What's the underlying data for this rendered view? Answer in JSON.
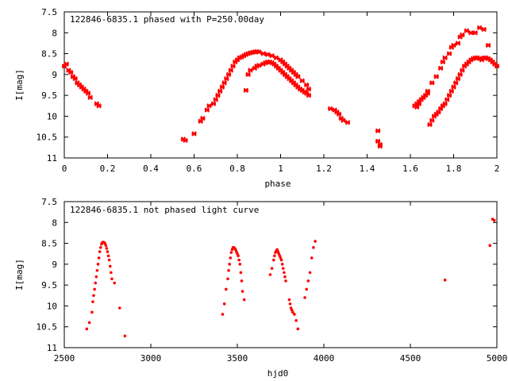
{
  "chart_data": [
    {
      "type": "scatter",
      "title": "122846-6835.1 phased with P=250.00day",
      "xlabel": "phase",
      "ylabel": "I[mag]",
      "xlim": [
        0,
        2
      ],
      "ylim": [
        11,
        7.5
      ],
      "y_inverted": true,
      "grid": false,
      "xticks": [
        0,
        0.2,
        0.4,
        0.6,
        0.8,
        1,
        1.2,
        1.4,
        1.6,
        1.8,
        2
      ],
      "xtick_labels": [
        "0",
        "0.2",
        "0.4",
        "0.6",
        "0.8",
        "1",
        "1.2",
        "1.4",
        "1.6",
        "1.8",
        "2"
      ],
      "yticks": [
        7.5,
        8,
        8.5,
        9,
        9.5,
        10,
        10.5,
        11
      ],
      "ytick_labels": [
        "7.5",
        "8",
        "8.5",
        "9",
        "9.5",
        "10",
        "10.5",
        "11"
      ],
      "marker_color": "#ff0000",
      "marker": "cross",
      "series": [
        {
          "x": [
            0.0,
            0.01,
            0.02,
            0.03,
            0.04,
            0.05,
            0.06,
            0.07,
            0.08,
            0.09,
            0.1,
            0.11,
            0.12,
            0.15,
            0.16,
            0.55,
            0.56,
            0.6,
            0.63,
            0.64,
            0.66,
            0.67,
            0.69,
            0.7,
            0.71,
            0.72,
            0.73,
            0.74,
            0.75,
            0.76,
            0.77,
            0.78,
            0.79,
            0.8,
            0.81,
            0.82,
            0.83,
            0.84,
            0.85,
            0.86,
            0.87,
            0.88,
            0.89,
            0.9,
            0.84,
            0.85,
            0.86,
            0.88,
            0.89,
            0.9,
            0.92,
            0.93,
            0.94,
            0.95,
            0.96,
            0.97,
            0.98,
            0.99,
            1.0,
            1.01,
            1.02,
            1.03,
            1.04,
            1.05,
            1.06,
            1.07,
            1.08,
            1.09,
            1.1,
            1.11,
            1.12,
            1.13,
            0.92,
            0.94,
            0.96,
            0.98,
            1.0,
            1.01,
            1.02,
            1.03,
            1.04,
            1.05,
            1.06,
            1.07,
            1.08,
            1.1,
            1.12,
            1.13,
            1.23,
            1.25,
            1.26,
            1.27,
            1.28,
            1.29,
            1.31,
            1.45,
            1.45,
            1.46,
            1.46,
            1.63,
            1.64,
            1.66,
            1.68,
            1.7,
            1.72,
            1.74,
            1.75,
            1.76,
            1.78,
            1.79,
            1.8,
            1.82,
            1.83,
            1.84,
            1.86,
            1.88,
            1.9,
            1.92,
            1.94,
            1.96,
            1.62,
            1.63,
            1.64,
            1.65,
            1.66,
            1.67,
            1.68,
            1.69,
            1.7,
            1.71,
            1.72,
            1.73,
            1.74,
            1.75,
            1.76,
            1.77,
            1.78,
            1.79,
            1.8,
            1.81,
            1.82,
            1.83,
            1.84,
            1.85,
            1.86,
            1.87,
            1.88,
            1.89,
            1.9,
            1.91,
            1.92,
            1.93,
            1.94,
            1.95,
            1.96,
            1.97,
            1.98,
            1.99,
            2.0
          ],
          "y": [
            8.8,
            8.75,
            8.9,
            8.95,
            9.05,
            9.1,
            9.2,
            9.25,
            9.3,
            9.35,
            9.4,
            9.45,
            9.55,
            9.7,
            9.75,
            10.55,
            10.58,
            10.42,
            10.12,
            10.05,
            9.85,
            9.75,
            9.7,
            9.6,
            9.5,
            9.4,
            9.3,
            9.2,
            9.1,
            9.0,
            8.9,
            8.8,
            8.7,
            8.65,
            8.6,
            8.58,
            8.55,
            8.52,
            8.5,
            8.48,
            8.47,
            8.46,
            8.45,
            8.46,
            9.38,
            9.0,
            8.9,
            8.85,
            8.8,
            8.78,
            8.75,
            8.72,
            8.7,
            8.7,
            8.72,
            8.75,
            8.8,
            8.85,
            8.9,
            8.95,
            9.0,
            9.05,
            9.1,
            9.15,
            9.2,
            9.25,
            9.3,
            9.35,
            9.38,
            9.42,
            9.45,
            9.5,
            8.5,
            8.52,
            8.55,
            8.6,
            8.65,
            8.7,
            8.75,
            8.8,
            8.85,
            8.9,
            8.95,
            9.0,
            9.05,
            9.15,
            9.25,
            9.35,
            9.82,
            9.85,
            9.9,
            9.95,
            10.05,
            10.1,
            10.15,
            10.35,
            10.6,
            10.68,
            10.72,
            9.78,
            9.7,
            9.55,
            9.4,
            9.2,
            9.05,
            8.85,
            8.7,
            8.6,
            8.5,
            8.35,
            8.3,
            8.25,
            8.1,
            8.05,
            7.95,
            8.0,
            8.0,
            7.88,
            7.92,
            8.3,
            9.75,
            9.7,
            9.65,
            9.6,
            9.55,
            9.5,
            9.45,
            10.2,
            10.1,
            10.0,
            9.95,
            9.9,
            9.82,
            9.75,
            9.7,
            9.6,
            9.5,
            9.4,
            9.3,
            9.2,
            9.1,
            9.0,
            8.9,
            8.8,
            8.75,
            8.7,
            8.65,
            8.62,
            8.6,
            8.6,
            8.62,
            8.65,
            8.6,
            8.6,
            8.62,
            8.65,
            8.7,
            8.75,
            8.8
          ]
        }
      ]
    },
    {
      "type": "scatter",
      "title": "122846-6835.1 not phased light curve",
      "xlabel": "hjd0",
      "ylabel": "I[mag]",
      "xlim": [
        2500,
        5000
      ],
      "ylim": [
        11,
        7.5
      ],
      "y_inverted": true,
      "grid": false,
      "xticks": [
        2500,
        3000,
        3500,
        4000,
        4500,
        5000
      ],
      "xtick_labels": [
        "2500",
        "3000",
        "3500",
        "4000",
        "4500",
        "5000"
      ],
      "yticks": [
        7.5,
        8,
        8.5,
        9,
        9.5,
        10,
        10.5,
        11
      ],
      "ytick_labels": [
        "7.5",
        "8",
        "8.5",
        "9",
        "9.5",
        "10",
        "10.5",
        "11"
      ],
      "marker_color": "#ff0000",
      "marker": "dot",
      "series": [
        {
          "x": [
            2630,
            2645,
            2660,
            2665,
            2670,
            2675,
            2680,
            2685,
            2690,
            2695,
            2700,
            2705,
            2710,
            2715,
            2720,
            2725,
            2730,
            2735,
            2740,
            2745,
            2750,
            2755,
            2760,
            2765,
            2770,
            2775,
            2790,
            2820,
            2850,
            3415,
            3425,
            3435,
            3445,
            3450,
            3455,
            3460,
            3465,
            3470,
            3475,
            3480,
            3485,
            3490,
            3495,
            3500,
            3505,
            3510,
            3515,
            3520,
            3525,
            3530,
            3540,
            3690,
            3700,
            3710,
            3715,
            3720,
            3725,
            3730,
            3735,
            3740,
            3745,
            3750,
            3755,
            3760,
            3765,
            3770,
            3775,
            3780,
            3800,
            3805,
            3810,
            3815,
            3820,
            3830,
            3840,
            3850,
            3890,
            3900,
            3910,
            3920,
            3930,
            3940,
            3950,
            4700,
            4960,
            4975,
            4985
          ],
          "y": [
            10.55,
            10.4,
            10.15,
            9.9,
            9.75,
            9.6,
            9.45,
            9.3,
            9.15,
            9.0,
            8.85,
            8.7,
            8.6,
            8.52,
            8.48,
            8.47,
            8.48,
            8.5,
            8.55,
            8.62,
            8.7,
            8.8,
            8.9,
            9.05,
            9.2,
            9.35,
            9.45,
            10.05,
            10.72,
            10.2,
            9.95,
            9.6,
            9.35,
            9.15,
            9.0,
            8.85,
            8.72,
            8.65,
            8.6,
            8.6,
            8.62,
            8.65,
            8.7,
            8.75,
            8.8,
            8.9,
            9.0,
            9.2,
            9.4,
            9.65,
            9.85,
            9.25,
            9.1,
            8.9,
            8.8,
            8.72,
            8.68,
            8.65,
            8.7,
            8.75,
            8.8,
            8.85,
            8.9,
            9.0,
            9.1,
            9.2,
            9.3,
            9.4,
            9.85,
            9.95,
            10.05,
            10.1,
            10.15,
            10.2,
            10.35,
            10.55,
            9.8,
            9.6,
            9.4,
            9.2,
            8.85,
            8.6,
            8.45,
            9.38,
            8.55,
            7.92,
            7.95
          ]
        }
      ]
    }
  ]
}
